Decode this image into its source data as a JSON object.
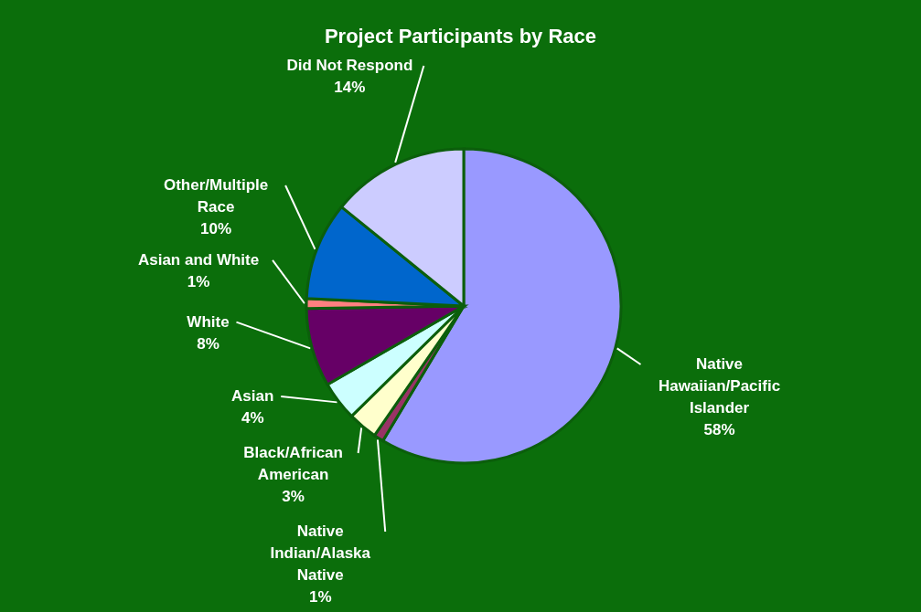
{
  "chart_data": {
    "type": "pie",
    "title": "Project Participants by Race",
    "categories": [
      "Native Hawaiian/Pacific Islander",
      "Native Indian/Alaska Native",
      "Black/African American",
      "Asian",
      "White",
      "Asian and White",
      "Other/Multiple Race",
      "Did Not Respond"
    ],
    "values": [
      58,
      1,
      3,
      4,
      8,
      1,
      10,
      14
    ],
    "colors": [
      "#9999ff",
      "#993366",
      "#ffffcc",
      "#ccffff",
      "#660066",
      "#ff8080",
      "#0066cc",
      "#ccccff"
    ],
    "value_labels": [
      "58%",
      "1%",
      "3%",
      "4%",
      "8%",
      "1%",
      "10%",
      "14%"
    ]
  }
}
